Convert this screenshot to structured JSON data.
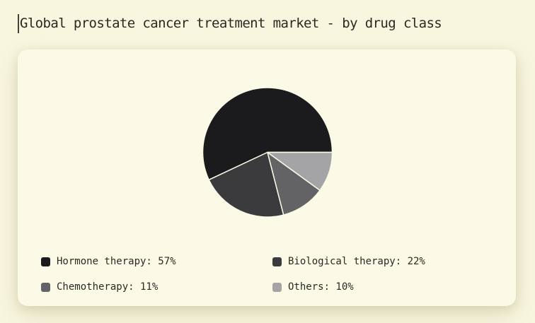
{
  "page": {
    "background_color": "#f8f6df",
    "title": "Global prostate cancer treatment market - by drug class"
  },
  "card": {
    "background_color": "#fbfae6",
    "slice_stroke_color": "#fbfae6"
  },
  "chart_data": {
    "type": "pie",
    "title": "Global prostate cancer treatment market - by drug class",
    "labels": [
      "Hormone therapy",
      "Biological therapy",
      "Chemotherapy",
      "Others"
    ],
    "values": [
      57,
      22,
      11,
      10
    ],
    "unit": "%",
    "colors": [
      "#1b1b1d",
      "#3b3b3d",
      "#636365",
      "#a4a4a6"
    ],
    "start_angle_deg": 0,
    "direction": "counterclockwise",
    "legend_position": "bottom",
    "legend_columns": 2
  },
  "legend": {
    "items": [
      {
        "label": "Hormone therapy",
        "value": 57,
        "display": "Hormone therapy: 57%",
        "color": "#1b1b1d"
      },
      {
        "label": "Biological therapy",
        "value": 22,
        "display": "Biological therapy: 22%",
        "color": "#3b3b3d"
      },
      {
        "label": "Chemotherapy",
        "value": 11,
        "display": "Chemotherapy: 11%",
        "color": "#636365"
      },
      {
        "label": "Others",
        "value": 10,
        "display": "Others: 10%",
        "color": "#a4a4a6"
      }
    ]
  }
}
